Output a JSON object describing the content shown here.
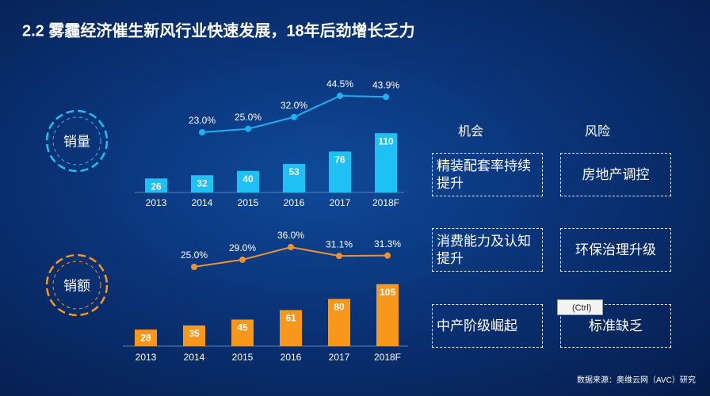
{
  "title": "2.2  雾霾经济催生新风行业快速发展，18年后劲增长乏力",
  "chart_data": [
    {
      "type": "bar",
      "label": "销量",
      "categories": [
        "2013",
        "2014",
        "2015",
        "2016",
        "2017",
        "2018F"
      ],
      "values": [
        26,
        32,
        40,
        53,
        76,
        110
      ],
      "color": "#1fc0f4",
      "line": {
        "values": [
          null,
          23.0,
          25.0,
          32.0,
          44.5,
          43.9
        ],
        "value_labels": [
          null,
          "23.0%",
          "25.0%",
          "32.0%",
          "44.5%",
          "43.9%"
        ],
        "color": "#1fb0f0"
      }
    },
    {
      "type": "bar",
      "label": "销额",
      "categories": [
        "2013",
        "2014",
        "2015",
        "2016",
        "2017",
        "2018F"
      ],
      "values": [
        28,
        35,
        45,
        61,
        80,
        105
      ],
      "color": "#f7981d",
      "line": {
        "values": [
          null,
          25.0,
          29.0,
          36.0,
          31.1,
          31.3
        ],
        "value_labels": [
          null,
          "25.0%",
          "29.0%",
          "36.0%",
          "31.1%",
          "31.3%"
        ],
        "color": "#ec9331"
      }
    }
  ],
  "panel": {
    "headers": [
      "机会",
      "风险"
    ],
    "rows": [
      [
        "精装配套率持续提升",
        "房地产调控"
      ],
      [
        "消费能力及认知提升",
        "环保治理升级"
      ],
      [
        "中产阶级崛起",
        "标准缺乏"
      ]
    ]
  },
  "popup": "(Ctrl)",
  "source": "数据来源：奥维云网（AVC）研究"
}
